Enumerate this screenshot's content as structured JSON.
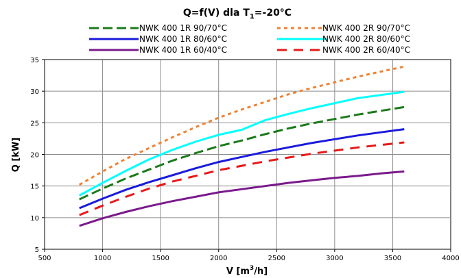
{
  "chart_data": {
    "type": "line",
    "title": {
      "main": "Q=f(V) dla T",
      "sub": "1",
      "suffix": "=-20°C"
    },
    "xlabel": {
      "main": "V [m",
      "sup": "3",
      "suffix": "/h]"
    },
    "ylabel": "Q [kW]",
    "xlim": [
      500,
      4000
    ],
    "ylim": [
      5,
      35
    ],
    "xticks": [
      500,
      1000,
      1500,
      2000,
      2500,
      3000,
      3500,
      4000
    ],
    "yticks": [
      5,
      10,
      15,
      20,
      25,
      30,
      35
    ],
    "grid": true,
    "legend_position": "top",
    "x": [
      800,
      1000,
      1200,
      1400,
      1600,
      1800,
      2000,
      2200,
      2400,
      2600,
      2800,
      3000,
      3200,
      3400,
      3600
    ],
    "series": [
      {
        "name": "NWK 400 1R  90/70°C",
        "color": "#1a7a1a",
        "dash": "14 6",
        "values": [
          12.9,
          14.6,
          16.2,
          17.6,
          19.0,
          20.2,
          21.3,
          22.2,
          23.2,
          24.1,
          24.9,
          25.6,
          26.3,
          26.9,
          27.5
        ]
      },
      {
        "name": "NWK 400 1R  80/60°C",
        "color": "#1a1adc",
        "dash": "",
        "values": [
          11.5,
          13.0,
          14.4,
          15.6,
          16.7,
          17.8,
          18.8,
          19.6,
          20.4,
          21.1,
          21.8,
          22.4,
          23.0,
          23.5,
          24.0
        ]
      },
      {
        "name": "NWK 400 1R  60/40°C",
        "color": "#7a1a8c",
        "dash": "",
        "values": [
          8.7,
          9.9,
          10.9,
          11.8,
          12.6,
          13.3,
          14.0,
          14.5,
          15.0,
          15.5,
          15.9,
          16.3,
          16.6,
          17.0,
          17.3
        ]
      },
      {
        "name": "NWK 400 2R  90/70°C",
        "color": "#f08232",
        "dash": "5 5",
        "values": [
          15.2,
          17.3,
          19.3,
          21.0,
          22.7,
          24.3,
          25.8,
          27.1,
          28.3,
          29.5,
          30.5,
          31.4,
          32.3,
          33.1,
          33.9
        ]
      },
      {
        "name": "NWK 400 2R  80/60°C",
        "color": "#00ffff",
        "dash": "",
        "values": [
          13.5,
          15.5,
          17.4,
          19.2,
          20.7,
          22.0,
          23.1,
          23.9,
          25.4,
          26.4,
          27.3,
          28.1,
          28.9,
          29.4,
          29.9
        ]
      },
      {
        "name": "NWK 400 2R  60/40°C",
        "color": "#e81818",
        "dash": "14 10",
        "values": [
          10.4,
          11.9,
          13.3,
          14.6,
          15.7,
          16.6,
          17.5,
          18.2,
          18.9,
          19.5,
          20.1,
          20.6,
          21.1,
          21.5,
          21.9
        ]
      }
    ]
  }
}
